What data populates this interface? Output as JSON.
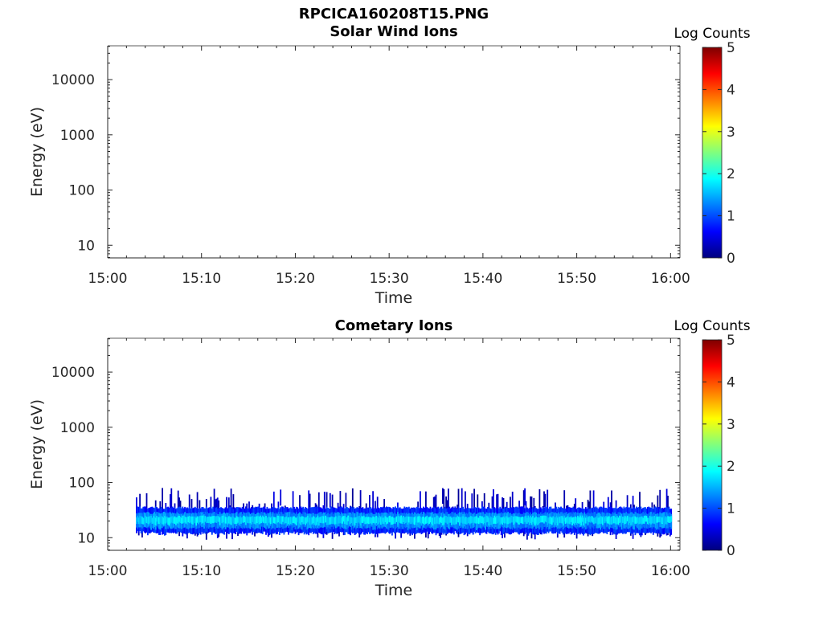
{
  "figure": {
    "title": "RPCICA160208T15.PNG"
  },
  "colorbar": {
    "label": "Log Counts",
    "ticks": [
      "0",
      "1",
      "2",
      "3",
      "4",
      "5"
    ],
    "range": [
      0,
      5
    ],
    "colormap": "jet",
    "stops": [
      "#00007f",
      "#0000ff",
      "#007fff",
      "#00ffff",
      "#7fff7f",
      "#ffff00",
      "#ff7f00",
      "#ff0000",
      "#7f0000"
    ]
  },
  "chart_data": [
    {
      "type": "heatmap",
      "title": "Solar Wind Ions",
      "xlabel": "Time",
      "ylabel": "Energy (eV)",
      "x_ticks": [
        "15:00",
        "15:10",
        "15:20",
        "15:30",
        "15:40",
        "15:50",
        "16:00"
      ],
      "x_range_minutes": [
        0,
        61
      ],
      "y_ticks": [
        "10",
        "100",
        "1000",
        "10000"
      ],
      "y_scale": "log",
      "y_range_eV": [
        5.9,
        41000
      ],
      "data_present": false,
      "bands": []
    },
    {
      "type": "heatmap",
      "title": "Cometary Ions",
      "xlabel": "Time",
      "ylabel": "Energy (eV)",
      "x_ticks": [
        "15:00",
        "15:10",
        "15:20",
        "15:30",
        "15:40",
        "15:50",
        "16:00"
      ],
      "x_range_minutes": [
        0,
        61
      ],
      "y_ticks": [
        "10",
        "100",
        "1000",
        "10000"
      ],
      "y_scale": "log",
      "y_range_eV": [
        5.9,
        41000
      ],
      "data_present": true,
      "data_time_range": [
        "15:03",
        "16:00"
      ],
      "bands": [
        {
          "energy_eV": [
            9,
            80
          ],
          "log_counts": 0.3,
          "fill": "sparse"
        },
        {
          "energy_eV": [
            12,
            35
          ],
          "log_counts": 0.8,
          "fill": "dense"
        },
        {
          "energy_eV": [
            15,
            28
          ],
          "log_counts": 1.3,
          "fill": "dense"
        },
        {
          "energy_eV": [
            18,
            24
          ],
          "log_counts": 1.7,
          "fill": "dense"
        }
      ]
    }
  ]
}
